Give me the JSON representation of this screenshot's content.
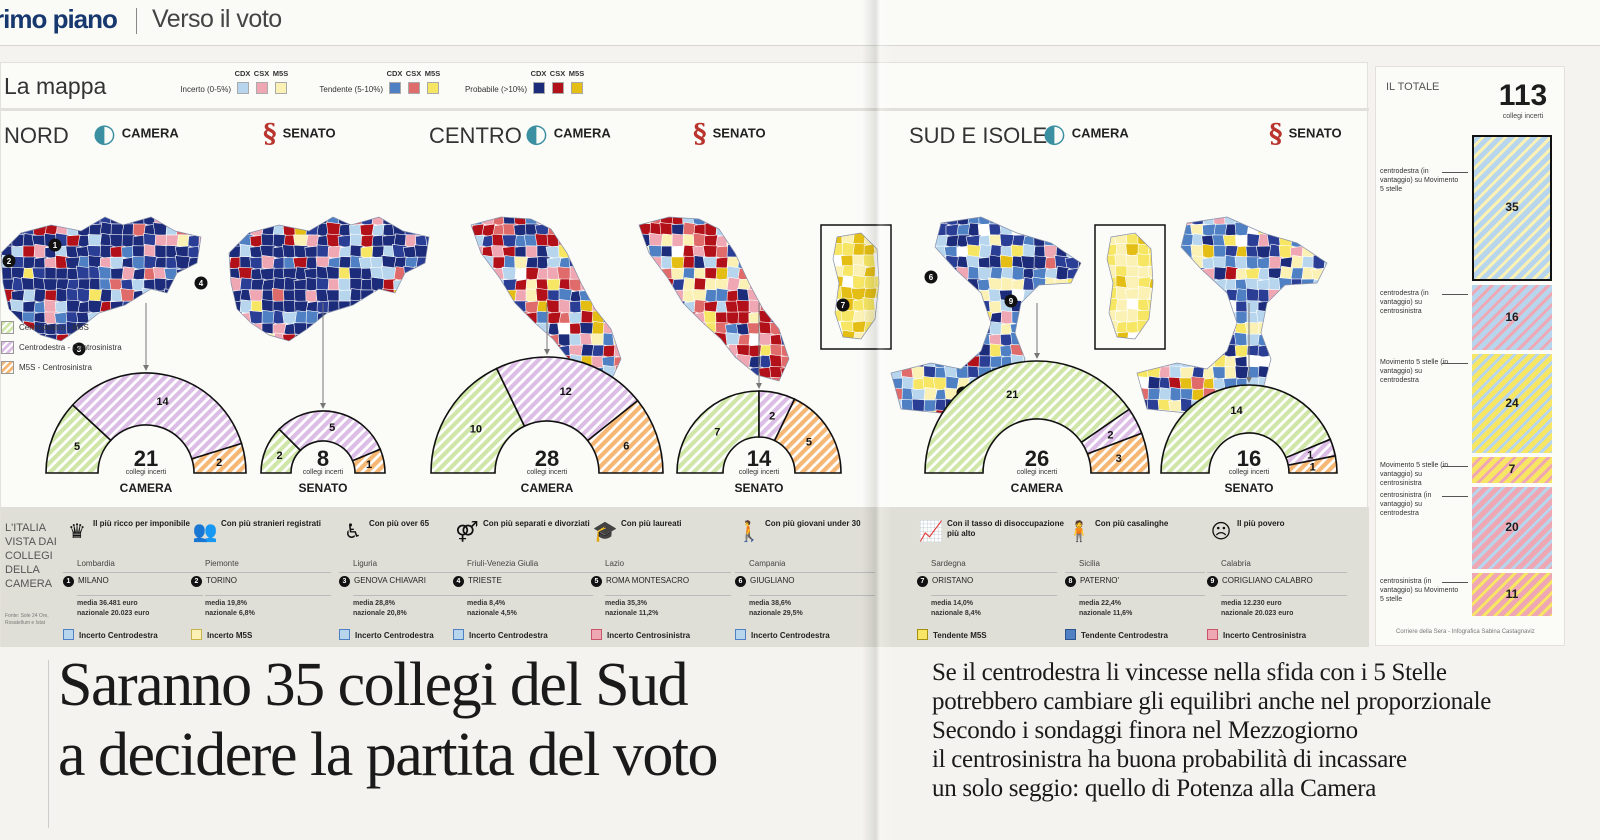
{
  "header": {
    "section": "rimo piano",
    "subsection": "Verso il voto"
  },
  "map_title": "La mappa",
  "legend": {
    "heads": [
      "CDX",
      "CSX",
      "M5S"
    ],
    "groups": [
      {
        "label": "Incerto (0-5%)",
        "colors": [
          "#b7d6ee",
          "#efa7b3",
          "#fbf1b4"
        ]
      },
      {
        "label": "Tendente (5-10%)",
        "colors": [
          "#4f80c4",
          "#e06b6b",
          "#f6e663"
        ]
      },
      {
        "label": "Probabile (>10%)",
        "colors": [
          "#1c2c7a",
          "#b3111a",
          "#e4be15"
        ]
      }
    ]
  },
  "chambers": {
    "camera": "CAMERA",
    "senato": "SENATO",
    "collegi": "collegi incerti"
  },
  "regions": [
    {
      "name": "NORD",
      "camera": {
        "total": "21",
        "segments": [
          {
            "v": "5",
            "c": "#cfe6a8"
          },
          {
            "v": "14",
            "c": "#dcbde6"
          },
          {
            "v": "2",
            "c": "#f5b773"
          }
        ]
      },
      "senato": {
        "total": "8",
        "segments": [
          {
            "v": "2",
            "c": "#cfe6a8"
          },
          {
            "v": "5",
            "c": "#dcbde6"
          },
          {
            "v": "1",
            "c": "#f5b773"
          }
        ]
      }
    },
    {
      "name": "CENTRO",
      "camera": {
        "total": "28",
        "segments": [
          {
            "v": "10",
            "c": "#cfe6a8"
          },
          {
            "v": "12",
            "c": "#dcbde6"
          },
          {
            "v": "6",
            "c": "#f5b773"
          }
        ]
      },
      "senato": {
        "total": "14",
        "segments": [
          {
            "v": "7",
            "c": "#cfe6a8"
          },
          {
            "v": "2",
            "c": "#dcbde6"
          },
          {
            "v": "5",
            "c": "#f5b773"
          }
        ]
      }
    },
    {
      "name": "SUD E ISOLE",
      "camera": {
        "total": "26",
        "segments": [
          {
            "v": "21",
            "c": "#cfe6a8"
          },
          {
            "v": "2",
            "c": "#dcbde6"
          },
          {
            "v": "3",
            "c": "#f5b773"
          }
        ]
      },
      "senato": {
        "total": "16",
        "segments": [
          {
            "v": "14",
            "c": "#cfe6a8"
          },
          {
            "v": "1",
            "c": "#dcbde6"
          },
          {
            "v": "1",
            "c": "#f5b773"
          }
        ]
      }
    }
  ],
  "category_legend": [
    {
      "label": "Centrodestra - M5S",
      "color": "#cfe6a8"
    },
    {
      "label": "Centrodestra - Centrosinistra",
      "color": "#dcbde6"
    },
    {
      "label": "M5S - Centrosinistra",
      "color": "#f5b773"
    }
  ],
  "map_markers": [
    "1",
    "2",
    "3",
    "4",
    "5",
    "6",
    "7",
    "8",
    "9"
  ],
  "stats_title": "L'ITALIA VISTA DAI COLLEGI DELLA CAMERA",
  "stats_source": "Fonte: Sole 24 Ore, Rosatellum e Istat",
  "stats": [
    {
      "icon": "♛",
      "icon_name": "money-icon",
      "caption": "Il più ricco per imponibile",
      "region": "Lombardia",
      "num": "1",
      "city": "MILANO",
      "media": "media 36.481 euro",
      "naz": "nazionale 20.023 euro",
      "tag": "Incerto Centrodestra",
      "tag_color": "#b7d6ee",
      "tag_border": "#4f80c4"
    },
    {
      "icon": "👥",
      "icon_name": "people-icon",
      "caption": "Con più stranieri registrati",
      "region": "Piemonte",
      "num": "2",
      "city": "TORINO",
      "media": "media 19,8%",
      "naz": "nazionale 6,8%",
      "tag": "Incerto M5S",
      "tag_color": "#fbf1b4",
      "tag_border": "#c9b24a"
    },
    {
      "icon": "♿",
      "icon_name": "elderly-icon",
      "caption": "Con più over 65",
      "region": "Liguria",
      "num": "3",
      "city": "GENOVA CHIAVARI",
      "media": "media 28,8%",
      "naz": "nazionale 20,8%",
      "tag": "Incerto Centrodestra",
      "tag_color": "#b7d6ee",
      "tag_border": "#4f80c4"
    },
    {
      "icon": "⚤",
      "icon_name": "divorce-icon",
      "caption": "Con più separati e divorziati",
      "region": "Friuli-Venezia Giulia",
      "num": "4",
      "city": "TRIESTE",
      "media": "media 8,4%",
      "naz": "nazionale 4,5%",
      "tag": "Incerto Centrodestra",
      "tag_color": "#b7d6ee",
      "tag_border": "#4f80c4"
    },
    {
      "icon": "🎓",
      "icon_name": "graduate-icon",
      "caption": "Con più laureati",
      "region": "Lazio",
      "num": "5",
      "city": "ROMA MONTESACRO",
      "media": "media 35,3%",
      "naz": "nazionale 11,2%",
      "tag": "Incerto Centrosinistra",
      "tag_color": "#efa7b3",
      "tag_border": "#c75468"
    },
    {
      "icon": "🚶",
      "icon_name": "young-icon",
      "caption": "Con più giovani under 30",
      "region": "Campania",
      "num": "6",
      "city": "GIUGLIANO",
      "media": "media 38,6%",
      "naz": "nazionale 29,5%",
      "tag": "Incerto Centrodestra",
      "tag_color": "#b7d6ee",
      "tag_border": "#4f80c4"
    },
    {
      "icon": "📈",
      "icon_name": "unemployment-icon",
      "caption": "Con il tasso di disoccupazione più alto",
      "region": "Sardegna",
      "num": "7",
      "city": "ORISTANO",
      "media": "media 14,0%",
      "naz": "nazionale 8,4%",
      "tag": "Tendente M5S",
      "tag_color": "#f6e663",
      "tag_border": "#a48f10"
    },
    {
      "icon": "🧍",
      "icon_name": "housewife-icon",
      "caption": "Con più casalinghe",
      "region": "Sicilia",
      "num": "8",
      "city": "PATERNO'",
      "media": "media 22,4%",
      "naz": "nazionale 11,6%",
      "tag": "Tendente Centrodestra",
      "tag_color": "#4f80c4",
      "tag_border": "#2b548e"
    },
    {
      "icon": "☹",
      "icon_name": "poor-icon",
      "caption": "Il più povero",
      "region": "Calabria",
      "num": "9",
      "city": "CORIGLIANO CALABRO",
      "media": "media 12.230 euro",
      "naz": "nazionale 20.023 euro",
      "tag": "Incerto Centrosinistra",
      "tag_color": "#efa7b3",
      "tag_border": "#c75468"
    }
  ],
  "totale": {
    "label": "IL TOTALE",
    "value": "113",
    "sub": "collegi incerti",
    "rows": [
      {
        "desc": "centrodestra (in vantaggio) su Movimento 5 stelle",
        "value": "35",
        "c1": "#b7d6ee",
        "c2": "#fbf1b4"
      },
      {
        "desc": "centrodestra (in vantaggio) su centrosinistra",
        "value": "16",
        "c1": "#b7d6ee",
        "c2": "#efa7b3"
      },
      {
        "desc": "Movimento 5 stelle (in vantaggio) su centrodestra",
        "value": "24",
        "c1": "#f6e663",
        "c2": "#b7d6ee"
      },
      {
        "desc": "Movimento 5 stelle (in vantaggio) su centrosinistra",
        "value": "7",
        "c1": "#f6e663",
        "c2": "#efa7b3"
      },
      {
        "desc": "centrosinistra (in vantaggio) su centrodestra",
        "value": "20",
        "c1": "#efa7b3",
        "c2": "#b7d6ee"
      },
      {
        "desc": "centrosinistra (in vantaggio) su Movimento 5 stelle",
        "value": "11",
        "c1": "#efa7b3",
        "c2": "#f6e663"
      }
    ],
    "credit": "Corriere della Sera - Infografica Sabina Castagnaviz"
  },
  "headline": [
    "Saranno 35 collegi del Sud",
    "a decidere la partita del voto"
  ],
  "subhead": [
    "Se il centrodestra li vincesse nella sfida con i 5 Stelle",
    "potrebbero cambiare gli equilibri anche nel proporzionale",
    "Secondo i sondaggi finora nel Mezzogiorno",
    "il centrosinistra ha buona probabilità di incassare",
    "un solo seggio: quello di Potenza alla Camera"
  ]
}
